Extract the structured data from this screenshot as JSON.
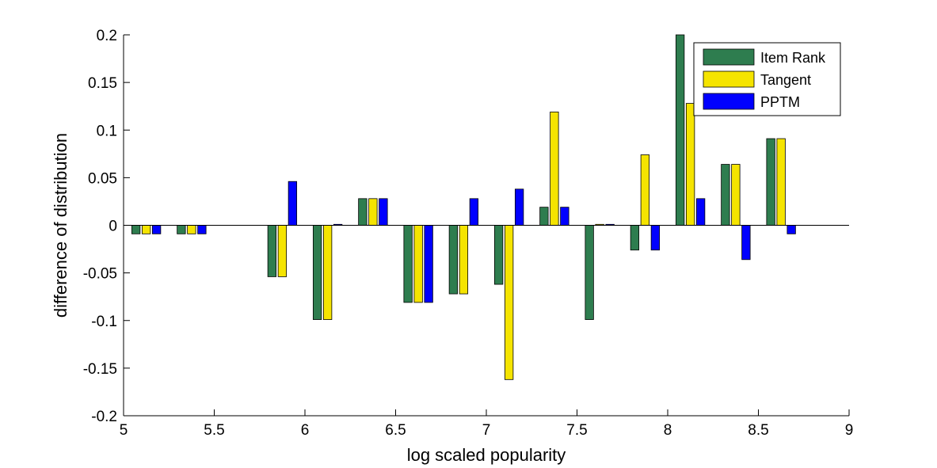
{
  "chart_data": {
    "type": "bar",
    "xlabel": "log scaled popularity",
    "ylabel": "difference of distribution",
    "xlim": [
      5,
      9
    ],
    "ylim": [
      -0.2,
      0.2
    ],
    "x_ticks": [
      "5",
      "5.5",
      "6",
      "6.5",
      "7",
      "7.5",
      "8",
      "8.5",
      "9"
    ],
    "y_ticks": [
      "-0.2",
      "-0.15",
      "-0.1",
      "-0.05",
      "0",
      "0.05",
      "0.1",
      "0.15",
      "0.2"
    ],
    "x_tick_values": [
      5,
      5.5,
      6,
      6.5,
      7,
      7.5,
      8,
      8.5,
      9
    ],
    "y_tick_values": [
      -0.2,
      -0.15,
      -0.1,
      -0.05,
      0,
      0.05,
      0.1,
      0.15,
      0.2
    ],
    "x": [
      5.125,
      5.375,
      5.875,
      6.125,
      6.375,
      6.625,
      6.875,
      7.125,
      7.375,
      7.625,
      7.875,
      8.125,
      8.375,
      8.625
    ],
    "series": [
      {
        "name": "Item Rank",
        "color": "#2e7d4f",
        "values": [
          -0.009,
          -0.009,
          -0.054,
          -0.099,
          0.028,
          -0.081,
          -0.072,
          -0.062,
          0.019,
          -0.099,
          -0.026,
          0.2,
          0.064,
          0.091
        ]
      },
      {
        "name": "Tangent",
        "color": "#f5e400",
        "values": [
          -0.009,
          -0.009,
          -0.054,
          -0.099,
          0.028,
          -0.081,
          -0.072,
          -0.162,
          0.119,
          0.001,
          0.074,
          0.128,
          0.064,
          0.091
        ]
      },
      {
        "name": "PPTM",
        "color": "#0000ff",
        "values": [
          -0.009,
          -0.009,
          0.046,
          0.001,
          0.028,
          -0.081,
          0.028,
          0.038,
          0.019,
          0.001,
          -0.026,
          0.028,
          -0.036,
          -0.009
        ]
      }
    ],
    "legend_position": "top-right"
  }
}
